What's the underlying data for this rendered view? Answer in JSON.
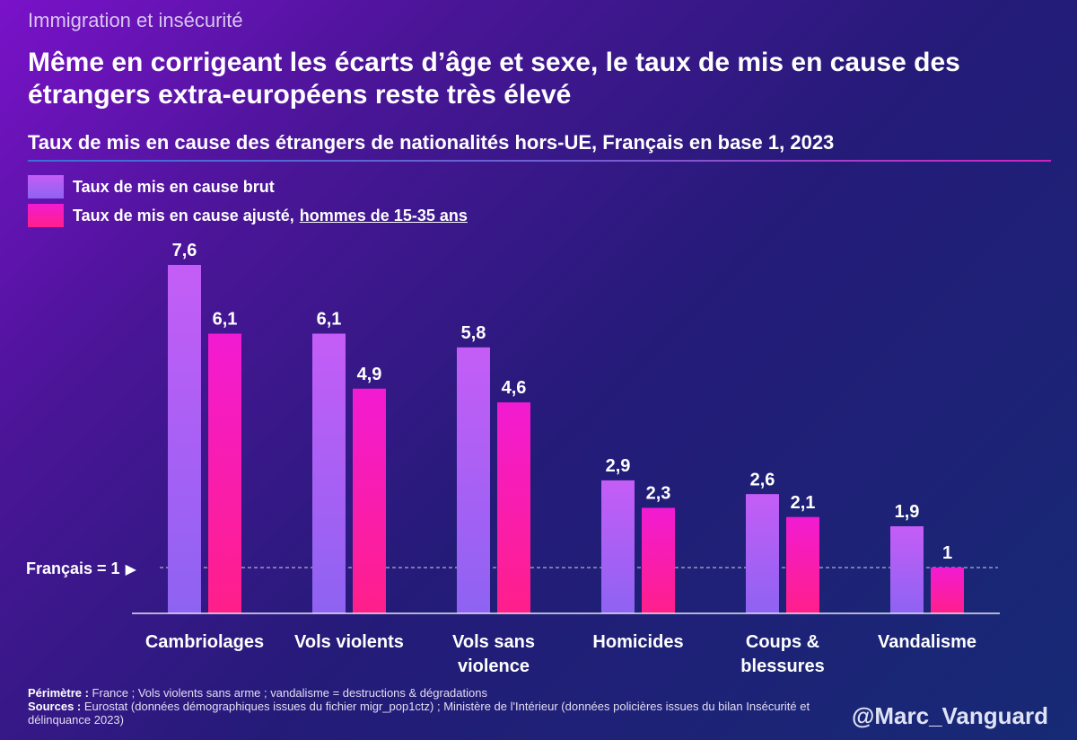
{
  "header": {
    "kicker": "Immigration et insécurité",
    "title": "Même en corrigeant les écarts d’âge et sexe, le taux de mis en cause des étrangers extra-européens reste très élevé",
    "subtitle": "Taux de mis en cause des étrangers de nationalités hors-UE, Français en base 1, 2023"
  },
  "legend": {
    "brut_label": "Taux de mis en cause brut",
    "adj_label": "Taux de mis en cause ajusté,",
    "adj_underlined": "hommes de 15-35 ans"
  },
  "reference": {
    "label": "Français = 1",
    "arrow": "▶",
    "value": 1
  },
  "footer": {
    "perimetre_key": "Périmètre :",
    "perimetre_text": "France ; Vols violents sans arme ; vandalisme = destructions & dégradations",
    "sources_key": "Sources :",
    "sources_text": "Eurostat (données démographiques issues du fichier migr_pop1ctz) ; Ministère de l'Intérieur (données policières issues du bilan Insécurité et délinquance 2023)"
  },
  "handle": "@Marc_Vanguard",
  "colors": {
    "brut_top": "#c45df6",
    "brut_bottom": "#8e63f2",
    "adj_top": "#f21bd2",
    "adj_bottom": "#ff1f8a"
  },
  "chart_data": {
    "type": "bar",
    "title": "Taux de mis en cause des étrangers de nationalités hors-UE, Français en base 1, 2023",
    "categories": [
      "Cambriolages",
      "Vols violents",
      "Vols sans\nviolence",
      "Homicides",
      "Coups &\nblessures",
      "Vandalisme"
    ],
    "series": [
      {
        "name": "Taux de mis en cause brut",
        "values": [
          7.6,
          6.1,
          5.8,
          2.9,
          2.6,
          1.9
        ],
        "labels": [
          "7,6",
          "6,1",
          "5,8",
          "2,9",
          "2,6",
          "1,9"
        ]
      },
      {
        "name": "Taux de mis en cause ajusté, hommes de 15-35 ans",
        "values": [
          6.1,
          4.9,
          4.6,
          2.3,
          2.1,
          1.0
        ],
        "labels": [
          "6,1",
          "4,9",
          "4,6",
          "2,3",
          "2,1",
          "1"
        ]
      }
    ],
    "ylim": [
      0,
      7.6
    ],
    "grid": false,
    "reference_line": 1,
    "legend": "top-left"
  }
}
